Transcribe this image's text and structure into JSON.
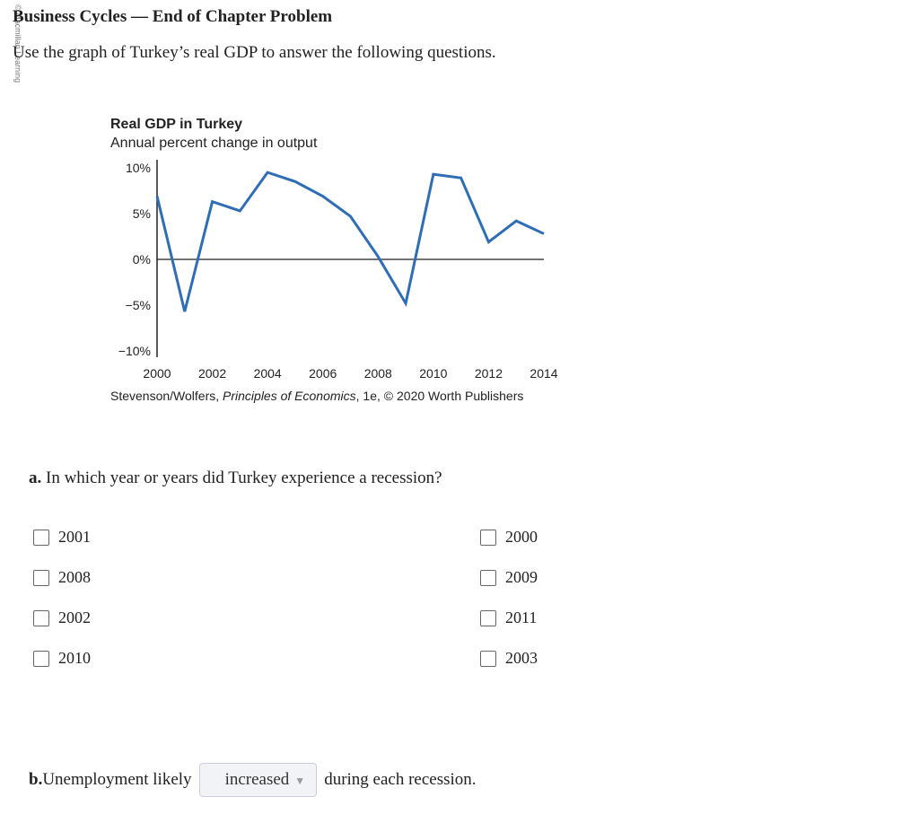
{
  "header": {
    "title": "Business Cycles — End of Chapter Problem",
    "intro": "Use the graph of Turkey’s real GDP to answer the following questions.",
    "side_text": "© Macmillan Learning"
  },
  "chart_data": {
    "type": "line",
    "title": "Real GDP in Turkey",
    "subtitle": "Annual percent change in output",
    "x": [
      2000,
      2001,
      2002,
      2003,
      2004,
      2005,
      2006,
      2007,
      2008,
      2009,
      2010,
      2011,
      2012,
      2013,
      2014
    ],
    "series": [
      {
        "values": [
          6.9,
          -5.7,
          6.3,
          5.3,
          9.5,
          8.5,
          6.9,
          4.7,
          0.3,
          -4.8,
          9.3,
          8.9,
          1.9,
          4.2,
          2.8
        ],
        "color": "#2f6db5"
      }
    ],
    "xticks": [
      "2000",
      "2002",
      "2004",
      "2006",
      "2008",
      "2010",
      "2012",
      "2014"
    ],
    "yticks": [
      {
        "v": 10,
        "l": "10%"
      },
      {
        "v": 5,
        "l": "5%"
      },
      {
        "v": 0,
        "l": "0%"
      },
      {
        "v": -5,
        "l": "−5%"
      },
      {
        "v": -10,
        "l": "−10%"
      }
    ],
    "ylim": [
      -10,
      10
    ],
    "xlim": [
      2000,
      2014
    ],
    "source_pre": "Stevenson/Wolfers, ",
    "source_italic": "Principles of Economics",
    "source_post": ", 1e, © 2020 Worth Publishers"
  },
  "question_a": {
    "label": "a.",
    "text": " In which year or years did Turkey experience a recession?",
    "options": [
      "2001",
      "2000",
      "2008",
      "2009",
      "2002",
      "2011",
      "2010",
      "2003"
    ]
  },
  "question_b": {
    "label": "b.",
    "pre": " Unemployment likely",
    "selected": "increased",
    "post": "during each recession."
  }
}
